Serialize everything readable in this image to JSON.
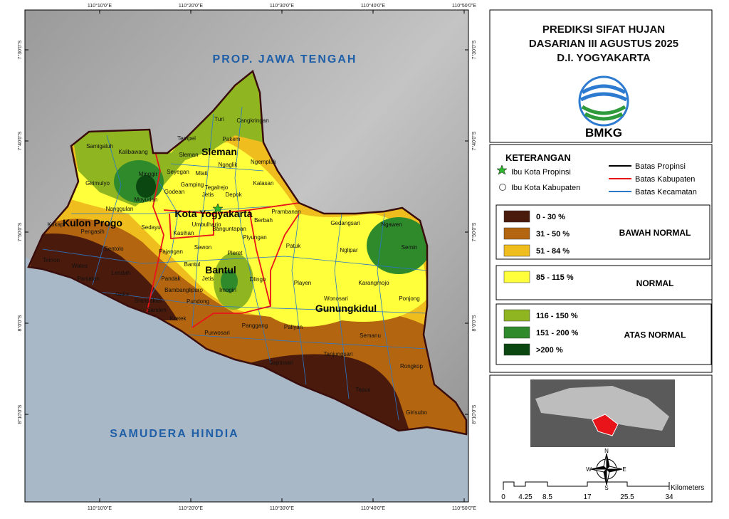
{
  "header": {
    "title_lines": [
      "PREDIKSI SIFAT HUJAN",
      "DASARIAN III AGUSTUS 2025",
      "D.I. YOGYAKARTA"
    ],
    "logo_text": "BMKG"
  },
  "graticule": {
    "lon": [
      "110°10'0\"E",
      "110°20'0\"E",
      "110°30'0\"E",
      "110°40'0\"E",
      "110°50'0\"E"
    ],
    "lat": [
      "7°30'0\"S",
      "7°40'0\"S",
      "7°50'0\"S",
      "8°0'0\"S",
      "8°10'0\"S"
    ]
  },
  "map": {
    "region_labels": [
      "PROP. JAWA TENGAH",
      "SAMUDERA HINDIA"
    ],
    "kabupaten": [
      "Sleman",
      "Kota Yogyakarta",
      "Bantul",
      "Kulon Progo",
      "Gunungkidul"
    ],
    "kecamatan": [
      "Turi",
      "Cangkringan",
      "Pakem",
      "Tempel",
      "Samigaluh",
      "Kalibawang",
      "Sleman",
      "Ngaglik",
      "Ngemplak",
      "Minggir",
      "Seyegan",
      "Mlati",
      "Kalasan",
      "Girimulyo",
      "Gamping",
      "Jetis",
      "Tegalrejo",
      "Godean",
      "Depok",
      "Moyudan",
      "Nanggulan",
      "Prambanan",
      "Kokap",
      "Sedayu",
      "Umbulharjo",
      "Kasihan",
      "Berbah",
      "Banguntapan",
      "Gedangsari",
      "Ngawen",
      "Pengasih",
      "Piyungan",
      "Sentolo",
      "Pajangan",
      "Sewon",
      "Patuk",
      "Nglipar",
      "Semin",
      "Temon",
      "Wates",
      "Lendah",
      "Bantul",
      "Pleret",
      "Panjatan",
      "Jetis",
      "Dlingo",
      "Playen",
      "Karangmojo",
      "Galur",
      "Pandak",
      "Bambanglipuro",
      "Imogiri",
      "Wonosari",
      "Ponjong",
      "Srandakan",
      "Pundong",
      "Sanden",
      "Kretek",
      "Purwosari",
      "Panggang",
      "Paliyan",
      "Semanu",
      "Tanjungsari",
      "Saptosari",
      "Rongkop",
      "Tepus",
      "Girisubo"
    ]
  },
  "legend": {
    "title": "KETERANGAN",
    "symbols": [
      "Ibu Kota Propinsi",
      "Ibu Kota Kabupaten"
    ],
    "lines": [
      "Batas Propinsi",
      "Batas Kabupaten",
      "Batas Kecamatan"
    ],
    "groups": [
      {
        "name": "BAWAH NORMAL",
        "classes": [
          {
            "label": "0 - 30 %",
            "color": "#4a1a0c"
          },
          {
            "label": "31 - 50 %",
            "color": "#b3650f"
          },
          {
            "label": "51 - 84 %",
            "color": "#f0bd1e"
          }
        ]
      },
      {
        "name": "NORMAL",
        "classes": [
          {
            "label": "85 - 115 %",
            "color": "#ffff3c"
          }
        ]
      },
      {
        "name": "ATAS NORMAL",
        "classes": [
          {
            "label": "116 - 150 %",
            "color": "#8fb521"
          },
          {
            "label": "151 - 200 %",
            "color": "#2f8a2c"
          },
          {
            "label": ">200 %",
            "color": "#0b4710"
          }
        ]
      }
    ]
  },
  "scale": {
    "labels": [
      "0",
      "4.25",
      "8.5",
      "17",
      "25.5",
      "34"
    ],
    "unit": "Kilometers"
  },
  "compass": [
    "N",
    "E",
    "S",
    "W"
  ]
}
